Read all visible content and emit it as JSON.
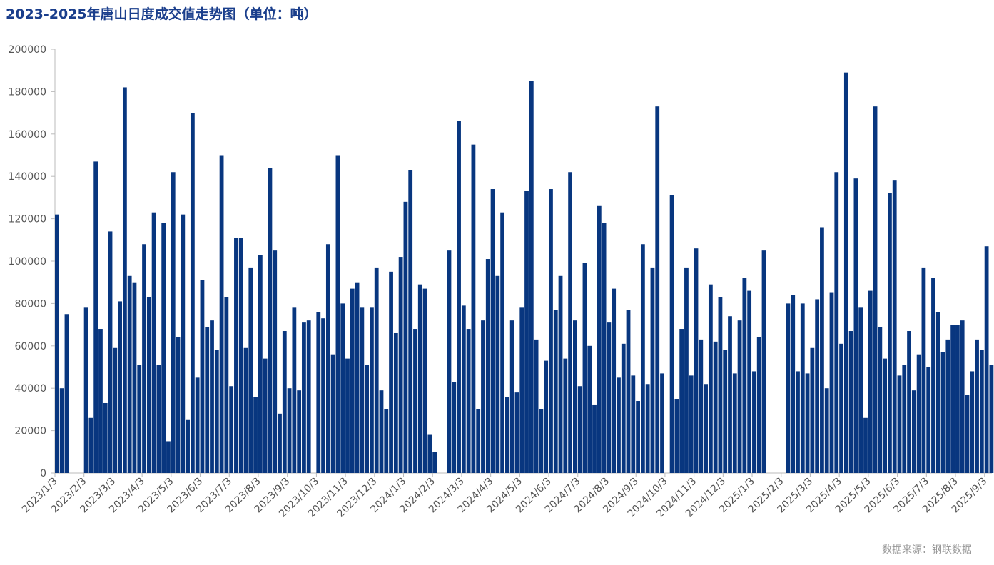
{
  "chart_data": {
    "type": "bar",
    "title": "2023-2025年唐山日度成交值走势图（单位：吨）",
    "source": "数据来源：钢联数据",
    "color": "#08367f",
    "categories": [
      "2023/1/3",
      null,
      null,
      null,
      null,
      null,
      "2023/2/3",
      null,
      null,
      null,
      null,
      null,
      "2023/3/3",
      null,
      null,
      null,
      null,
      null,
      "2023/4/3",
      null,
      null,
      null,
      null,
      null,
      "2023/5/3",
      null,
      null,
      null,
      null,
      null,
      "2023/6/3",
      null,
      null,
      null,
      null,
      null,
      "2023/7/3",
      null,
      null,
      null,
      null,
      null,
      "2023/8/3",
      null,
      null,
      null,
      null,
      null,
      "2023/9/3",
      null,
      null,
      null,
      null,
      null,
      "2023/10/3",
      null,
      null,
      null,
      null,
      null,
      "2023/11/3",
      null,
      null,
      null,
      null,
      null,
      "2023/12/3",
      null,
      null,
      null,
      null,
      null,
      "2024/1/3",
      null,
      null,
      null,
      null,
      null,
      "2024/2/3",
      null,
      null,
      null,
      null,
      null,
      "2024/3/3",
      null,
      null,
      null,
      null,
      null,
      "2024/4/3",
      null,
      null,
      null,
      null,
      null,
      "2024/5/3",
      null,
      null,
      null,
      null,
      null,
      "2024/6/3",
      null,
      null,
      null,
      null,
      null,
      "2024/7/3",
      null,
      null,
      null,
      null,
      null,
      "2024/8/3",
      null,
      null,
      null,
      null,
      null,
      "2024/9/3",
      null,
      null,
      null,
      null,
      null,
      "2024/10/3",
      null,
      null,
      null,
      null,
      null,
      "2024/11/3",
      null,
      null,
      null,
      null,
      null,
      "2024/12/3",
      null,
      null,
      null,
      null,
      null,
      "2025/1/3",
      null,
      null,
      null,
      null,
      null,
      "2025/2/3",
      null,
      null,
      null,
      null,
      null,
      "2025/3/3",
      null,
      null,
      null,
      null,
      null,
      "2025/4/3",
      null,
      null,
      null,
      null,
      null,
      "2025/5/3",
      null,
      null,
      null,
      null,
      null,
      "2025/6/3",
      null,
      null,
      null,
      null,
      null,
      "2025/7/3",
      null,
      null,
      null,
      null,
      null,
      "2025/8/3",
      null,
      null,
      null,
      null,
      null,
      "2025/9/3",
      null
    ],
    "values": [
      122000,
      40000,
      75000,
      null,
      null,
      null,
      78000,
      26000,
      147000,
      68000,
      33000,
      114000,
      59000,
      81000,
      182000,
      93000,
      90000,
      51000,
      108000,
      83000,
      123000,
      51000,
      118000,
      15000,
      142000,
      64000,
      122000,
      25000,
      170000,
      45000,
      91000,
      69000,
      72000,
      58000,
      150000,
      83000,
      41000,
      111000,
      111000,
      59000,
      97000,
      36000,
      103000,
      54000,
      144000,
      105000,
      28000,
      67000,
      40000,
      78000,
      39000,
      71000,
      72000,
      null,
      76000,
      73000,
      108000,
      56000,
      150000,
      80000,
      54000,
      87000,
      90000,
      78000,
      51000,
      78000,
      97000,
      39000,
      30000,
      95000,
      66000,
      102000,
      128000,
      143000,
      68000,
      89000,
      87000,
      18000,
      10000,
      null,
      null,
      105000,
      43000,
      166000,
      79000,
      68000,
      155000,
      30000,
      72000,
      101000,
      134000,
      93000,
      123000,
      36000,
      72000,
      38000,
      78000,
      133000,
      185000,
      63000,
      30000,
      53000,
      134000,
      77000,
      93000,
      54000,
      142000,
      72000,
      41000,
      99000,
      60000,
      32000,
      126000,
      118000,
      71000,
      87000,
      45000,
      61000,
      77000,
      46000,
      34000,
      108000,
      42000,
      97000,
      173000,
      47000,
      null,
      131000,
      35000,
      68000,
      97000,
      46000,
      106000,
      63000,
      42000,
      89000,
      62000,
      83000,
      58000,
      74000,
      47000,
      72000,
      92000,
      86000,
      48000,
      64000,
      105000,
      null,
      null,
      null,
      null,
      80000,
      84000,
      48000,
      80000,
      47000,
      59000,
      82000,
      116000,
      40000,
      85000,
      142000,
      61000,
      189000,
      67000,
      139000,
      78000,
      26000,
      86000,
      173000,
      69000,
      54000,
      132000,
      138000,
      46000,
      51000,
      67000,
      39000,
      56000,
      97000,
      50000,
      92000,
      76000,
      57000,
      63000,
      70000,
      70000,
      72000,
      37000,
      48000,
      63000,
      58000,
      107000,
      51000
    ],
    "ylim": [
      0,
      200000
    ],
    "yticks": [
      0,
      20000,
      40000,
      60000,
      80000,
      100000,
      120000,
      140000,
      160000,
      180000,
      200000
    ]
  }
}
